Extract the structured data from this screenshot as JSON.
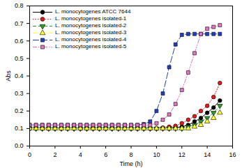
{
  "chart_data": {
    "type": "line",
    "x_label": "Time (h)",
    "y_label": "Abs",
    "legend": "upper left",
    "grid": false,
    "xlim": [
      0,
      16
    ],
    "xticks": [
      0,
      2,
      4,
      6,
      8,
      10,
      12,
      14,
      16
    ],
    "ylim": [
      0,
      0.8
    ],
    "yticks": [
      {
        "value": 0,
        "label": "0.0"
      },
      {
        "value": 0.1,
        "label": "0.1"
      },
      {
        "value": 0.2,
        "label": "0.2"
      },
      {
        "value": 0.3,
        "label": "0.3"
      },
      {
        "value": 0.4,
        "label": "0.4"
      },
      {
        "value": 0.5,
        "label": "0.5"
      },
      {
        "value": 0.6,
        "label": "0.6"
      },
      {
        "value": 0.7,
        "label": "0.7"
      },
      {
        "value": 0.8,
        "label": "0.8"
      }
    ],
    "x": [
      0,
      0.5,
      1,
      1.5,
      2,
      2.5,
      3,
      3.5,
      4,
      4.5,
      5,
      5.5,
      6,
      6.5,
      7,
      7.5,
      8,
      8.5,
      9,
      9.5,
      10,
      10.5,
      11,
      11.5,
      12,
      12.5,
      13,
      13.5,
      14,
      14.5,
      15
    ],
    "series": [
      {
        "name": "L. monocytogenes ATCC 7644",
        "color": "#000000",
        "marker": "circle",
        "line_style": "solid",
        "values": [
          0.1,
          0.1,
          0.1,
          0.1,
          0.1,
          0.1,
          0.1,
          0.1,
          0.1,
          0.1,
          0.1,
          0.1,
          0.1,
          0.1,
          0.1,
          0.1,
          0.1,
          0.1,
          0.1,
          0.1,
          0.1,
          0.1,
          0.1,
          0.105,
          0.11,
          0.12,
          0.14,
          0.16,
          0.19,
          0.22,
          0.26
        ]
      },
      {
        "name": "L. monocytogenes isolated-1",
        "color": "#e31a1c",
        "marker": "circle",
        "line_style": "dotted",
        "values": [
          0.1,
          0.1,
          0.1,
          0.1,
          0.1,
          0.1,
          0.1,
          0.1,
          0.1,
          0.1,
          0.1,
          0.1,
          0.1,
          0.1,
          0.1,
          0.1,
          0.1,
          0.1,
          0.1,
          0.1,
          0.1,
          0.105,
          0.11,
          0.115,
          0.13,
          0.15,
          0.17,
          0.2,
          0.23,
          0.28,
          0.36
        ]
      },
      {
        "name": "L. monocytogenes isolated-2",
        "color": "#2ca02c",
        "marker": "triangle-down",
        "line_style": "dashed",
        "values": [
          0.1,
          0.1,
          0.1,
          0.1,
          0.1,
          0.1,
          0.1,
          0.1,
          0.1,
          0.1,
          0.1,
          0.1,
          0.1,
          0.1,
          0.1,
          0.1,
          0.1,
          0.1,
          0.1,
          0.1,
          0.1,
          0.1,
          0.1,
          0.1,
          0.1,
          0.11,
          0.12,
          0.14,
          0.16,
          0.19,
          0.23
        ]
      },
      {
        "name": "L. monocytogenes isolated-3",
        "color": "#ffff33",
        "marker": "triangle",
        "line_style": "dashdot",
        "values": [
          0.1,
          0.1,
          0.1,
          0.1,
          0.1,
          0.1,
          0.1,
          0.1,
          0.1,
          0.1,
          0.1,
          0.1,
          0.1,
          0.1,
          0.1,
          0.1,
          0.1,
          0.1,
          0.1,
          0.1,
          0.1,
          0.1,
          0.1,
          0.1,
          0.1,
          0.1,
          0.11,
          0.12,
          0.14,
          0.16,
          0.19
        ]
      },
      {
        "name": "L. monocytogenes isolated-4",
        "color": "#1f3fbf",
        "marker": "square",
        "line_style": "longdash",
        "values": [
          0.12,
          0.12,
          0.12,
          0.12,
          0.12,
          0.12,
          0.12,
          0.12,
          0.12,
          0.12,
          0.12,
          0.12,
          0.12,
          0.12,
          0.12,
          0.12,
          0.12,
          0.12,
          0.125,
          0.14,
          0.2,
          0.3,
          0.45,
          0.58,
          0.635,
          0.64,
          0.64,
          0.64,
          0.64,
          0.64,
          0.64
        ]
      },
      {
        "name": "L. monocytogenes isolated-5",
        "color": "#e377c2",
        "marker": "square",
        "line_style": "dashdotdot",
        "values": [
          0.12,
          0.12,
          0.12,
          0.12,
          0.12,
          0.12,
          0.12,
          0.12,
          0.12,
          0.12,
          0.12,
          0.12,
          0.12,
          0.12,
          0.12,
          0.12,
          0.12,
          0.12,
          0.12,
          0.12,
          0.13,
          0.15,
          0.18,
          0.24,
          0.32,
          0.42,
          0.53,
          0.64,
          0.67,
          0.68,
          0.69
        ]
      }
    ]
  }
}
